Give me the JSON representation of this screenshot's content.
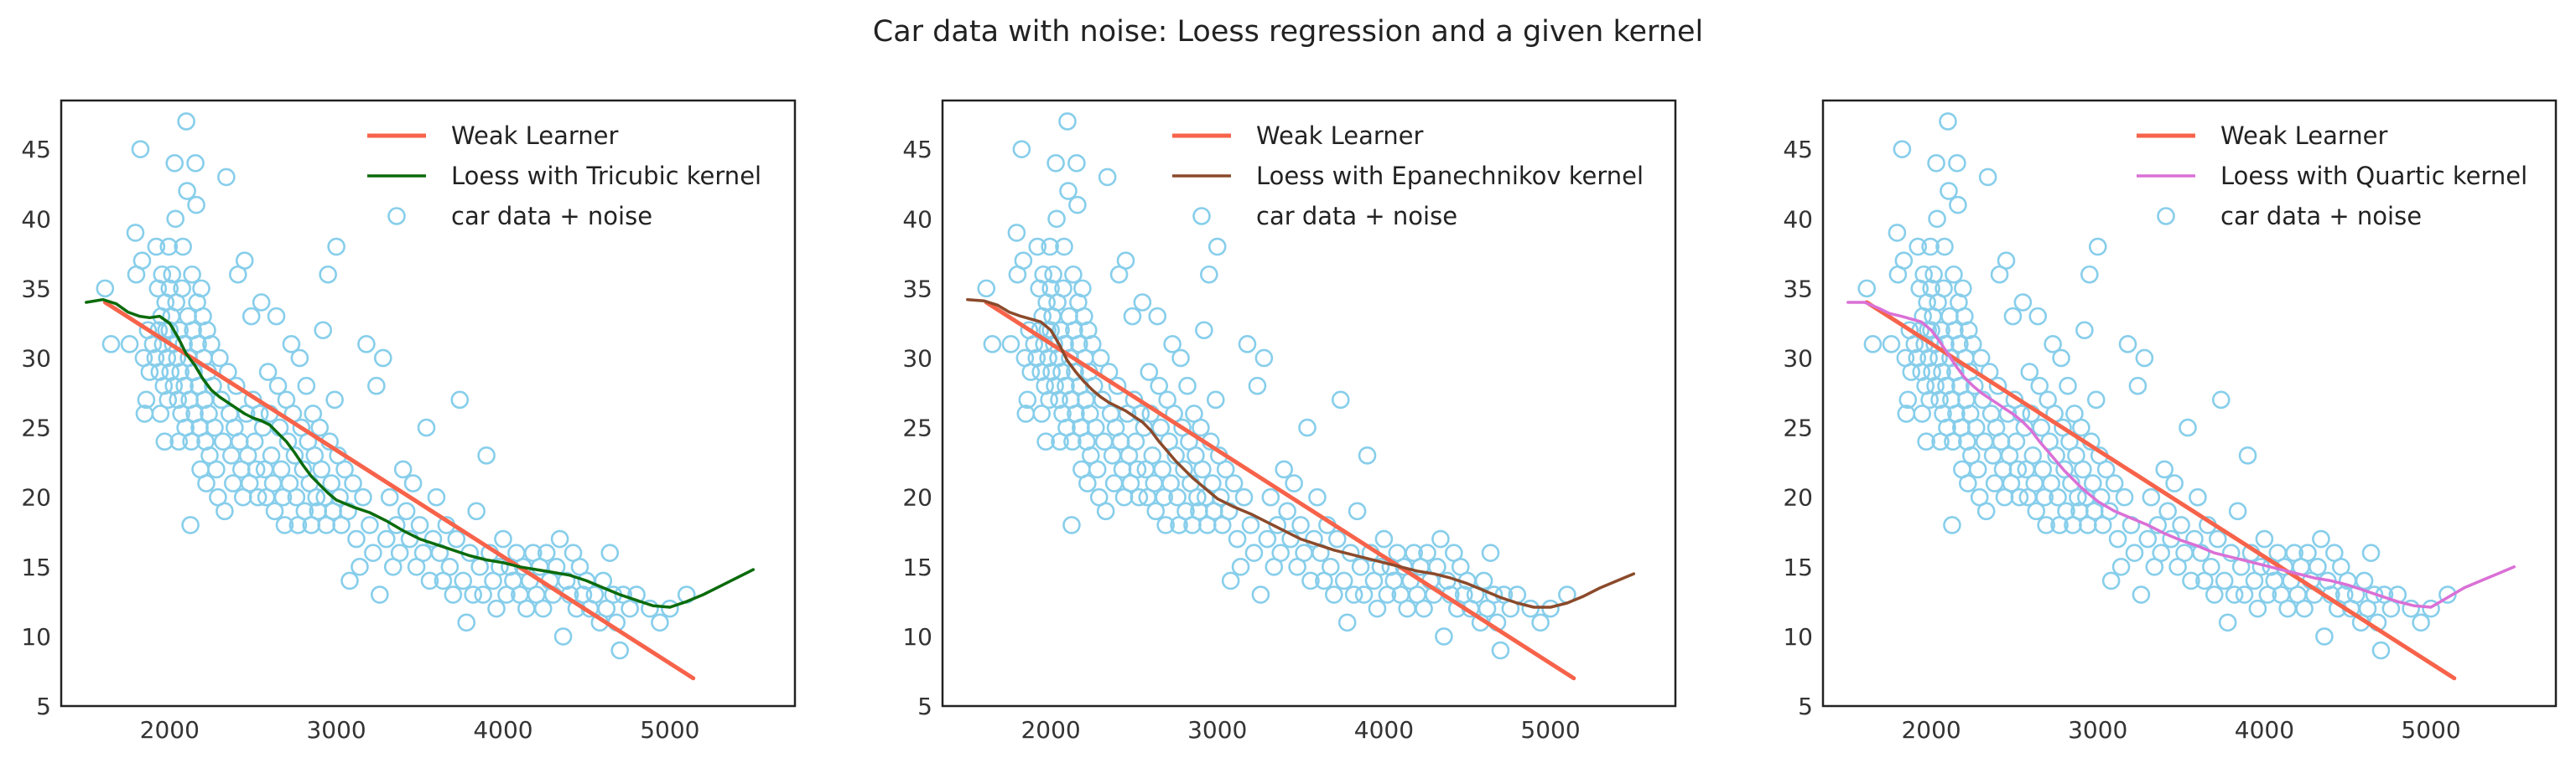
{
  "figure": {
    "title": "Car data with noise: Loess regression and a given kernel"
  },
  "colors": {
    "weak_learner": "#f7634a",
    "scatter": "#87ceeb",
    "tricubic": "#0b6b0b",
    "epanechnikov": "#8b4a2b",
    "quartic": "#da70d6"
  },
  "chart_data": [
    {
      "type": "line",
      "xlim": [
        1350,
        5750
      ],
      "ylim": [
        5,
        48.5
      ],
      "xticks": [
        2000,
        3000,
        4000,
        5000
      ],
      "yticks": [
        5,
        10,
        15,
        20,
        25,
        30,
        35,
        40,
        45
      ],
      "grid": false,
      "legend_placement": "top-right",
      "series": [
        {
          "name": "Weak Learner",
          "kind": "line",
          "color": "#f7634a",
          "width": 5,
          "x": [
            1613,
            5140
          ],
          "y": [
            34.0,
            7.0
          ]
        },
        {
          "name": "Loess with Tricubic kernel",
          "kind": "line",
          "color": "#0b6b0b",
          "width": 3.5,
          "x": [
            1500,
            1600,
            1680,
            1750,
            1820,
            1880,
            1940,
            2000,
            2050,
            2100,
            2150,
            2200,
            2250,
            2300,
            2350,
            2400,
            2450,
            2500,
            2550,
            2600,
            2650,
            2700,
            2750,
            2800,
            2850,
            2900,
            2950,
            3000,
            3100,
            3200,
            3300,
            3400,
            3500,
            3600,
            3700,
            3800,
            3900,
            4000,
            4100,
            4200,
            4300,
            4400,
            4500,
            4600,
            4700,
            4800,
            4900,
            5000,
            5100,
            5200,
            5300,
            5400,
            5500
          ],
          "y": [
            34.0,
            34.2,
            33.9,
            33.3,
            33.0,
            32.9,
            33.0,
            32.5,
            31.5,
            30.3,
            29.5,
            28.5,
            27.7,
            27.2,
            26.8,
            26.4,
            26.0,
            25.7,
            25.5,
            25.2,
            24.6,
            24.0,
            23.2,
            22.3,
            21.5,
            20.9,
            20.3,
            19.8,
            19.3,
            18.9,
            18.3,
            17.6,
            17.0,
            16.6,
            16.2,
            15.8,
            15.5,
            15.3,
            15.0,
            14.8,
            14.6,
            14.4,
            14.0,
            13.5,
            13.0,
            12.6,
            12.2,
            12.1,
            12.5,
            13.0,
            13.6,
            14.2,
            14.8
          ]
        },
        {
          "name": "car data + noise",
          "kind": "scatter",
          "color": "#87ceeb"
        }
      ]
    },
    {
      "type": "line",
      "xlim": [
        1350,
        5750
      ],
      "ylim": [
        5,
        48.5
      ],
      "xticks": [
        2000,
        3000,
        4000,
        5000
      ],
      "yticks": [
        5,
        10,
        15,
        20,
        25,
        30,
        35,
        40,
        45
      ],
      "grid": false,
      "legend_placement": "top-right",
      "series": [
        {
          "name": "Weak Learner",
          "kind": "line",
          "color": "#f7634a",
          "width": 5,
          "x": [
            1613,
            5140
          ],
          "y": [
            34.0,
            7.0
          ]
        },
        {
          "name": "Loess with Epanechnikov kernel",
          "kind": "line",
          "color": "#8b4a2b",
          "width": 3.5,
          "x": [
            1500,
            1600,
            1680,
            1750,
            1820,
            1880,
            1940,
            2000,
            2050,
            2100,
            2150,
            2200,
            2250,
            2300,
            2350,
            2400,
            2450,
            2500,
            2550,
            2600,
            2650,
            2700,
            2750,
            2800,
            2850,
            2900,
            2950,
            3000,
            3100,
            3200,
            3300,
            3400,
            3500,
            3600,
            3700,
            3800,
            3900,
            4000,
            4100,
            4200,
            4300,
            4400,
            4500,
            4600,
            4700,
            4800,
            4900,
            5000,
            5100,
            5200,
            5300,
            5400,
            5500
          ],
          "y": [
            34.2,
            34.1,
            33.8,
            33.3,
            33.0,
            32.8,
            32.6,
            32.0,
            31.0,
            29.8,
            29.0,
            28.3,
            27.7,
            27.2,
            26.8,
            26.5,
            26.2,
            25.8,
            25.4,
            24.8,
            24.0,
            23.3,
            22.6,
            22.0,
            21.4,
            20.9,
            20.4,
            19.9,
            19.3,
            18.8,
            18.2,
            17.6,
            17.0,
            16.6,
            16.2,
            15.9,
            15.6,
            15.3,
            15.0,
            14.7,
            14.5,
            14.2,
            13.8,
            13.3,
            12.8,
            12.4,
            12.1,
            12.1,
            12.4,
            12.9,
            13.5,
            14.0,
            14.5
          ]
        },
        {
          "name": "car data + noise",
          "kind": "scatter",
          "color": "#87ceeb"
        }
      ]
    },
    {
      "type": "line",
      "xlim": [
        1350,
        5750
      ],
      "ylim": [
        5,
        48.5
      ],
      "xticks": [
        2000,
        3000,
        4000,
        5000
      ],
      "yticks": [
        5,
        10,
        15,
        20,
        25,
        30,
        35,
        40,
        45
      ],
      "grid": false,
      "legend_placement": "top-right",
      "series": [
        {
          "name": "Weak Learner",
          "kind": "line",
          "color": "#f7634a",
          "width": 5,
          "x": [
            1613,
            5140
          ],
          "y": [
            34.0,
            7.0
          ]
        },
        {
          "name": "Loess with Quartic kernel",
          "kind": "line",
          "color": "#da70d6",
          "width": 3.5,
          "x": [
            1500,
            1600,
            1680,
            1750,
            1820,
            1880,
            1940,
            2000,
            2050,
            2100,
            2150,
            2200,
            2250,
            2300,
            2350,
            2400,
            2450,
            2500,
            2550,
            2600,
            2650,
            2700,
            2750,
            2800,
            2850,
            2900,
            2950,
            3000,
            3100,
            3200,
            3300,
            3400,
            3500,
            3600,
            3700,
            3800,
            3900,
            4000,
            4100,
            4200,
            4300,
            4400,
            4500,
            4600,
            4700,
            4800,
            4900,
            5000,
            5100,
            5200,
            5300,
            5400,
            5500
          ],
          "y": [
            34.0,
            34.0,
            33.6,
            33.2,
            33.0,
            32.8,
            32.6,
            32.0,
            31.2,
            30.3,
            29.4,
            28.6,
            28.0,
            27.5,
            27.1,
            26.7,
            26.3,
            25.9,
            25.4,
            24.8,
            24.0,
            23.3,
            22.6,
            21.9,
            21.3,
            20.7,
            20.2,
            19.7,
            19.0,
            18.5,
            18.0,
            17.4,
            16.9,
            16.5,
            16.0,
            15.7,
            15.4,
            15.1,
            14.8,
            14.5,
            14.2,
            14.0,
            13.7,
            13.3,
            12.9,
            12.5,
            12.2,
            12.1,
            12.8,
            13.5,
            14.0,
            14.5,
            15.0
          ]
        },
        {
          "name": "car data + noise",
          "kind": "scatter",
          "color": "#87ceeb"
        }
      ]
    }
  ],
  "scatter_points": [
    [
      1613,
      35
    ],
    [
      1649,
      31
    ],
    [
      1760,
      31
    ],
    [
      1795,
      39
    ],
    [
      1800,
      36
    ],
    [
      1825,
      45
    ],
    [
      1835,
      37
    ],
    [
      1845,
      30
    ],
    [
      1850,
      26
    ],
    [
      1860,
      27
    ],
    [
      1870,
      32
    ],
    [
      1880,
      29
    ],
    [
      1900,
      31
    ],
    [
      1915,
      30
    ],
    [
      1920,
      38
    ],
    [
      1930,
      35
    ],
    [
      1935,
      32
    ],
    [
      1940,
      29
    ],
    [
      1945,
      26
    ],
    [
      1950,
      33
    ],
    [
      1955,
      36
    ],
    [
      1960,
      31
    ],
    [
      1965,
      28
    ],
    [
      1970,
      24
    ],
    [
      1975,
      34
    ],
    [
      1980,
      32
    ],
    [
      1985,
      30
    ],
    [
      1990,
      27
    ],
    [
      1995,
      38
    ],
    [
      2000,
      35
    ],
    [
      2000,
      32
    ],
    [
      2005,
      29
    ],
    [
      2010,
      33
    ],
    [
      2015,
      36
    ],
    [
      2020,
      31
    ],
    [
      2025,
      28
    ],
    [
      2030,
      44
    ],
    [
      2035,
      40
    ],
    [
      2040,
      34
    ],
    [
      2045,
      30
    ],
    [
      2050,
      27
    ],
    [
      2055,
      24
    ],
    [
      2060,
      32
    ],
    [
      2065,
      29
    ],
    [
      2070,
      26
    ],
    [
      2075,
      35
    ],
    [
      2080,
      38
    ],
    [
      2085,
      31
    ],
    [
      2090,
      28
    ],
    [
      2095,
      25
    ],
    [
      2100,
      47
    ],
    [
      2105,
      42
    ],
    [
      2110,
      33
    ],
    [
      2115,
      30
    ],
    [
      2120,
      27
    ],
    [
      2125,
      18
    ],
    [
      2130,
      24
    ],
    [
      2135,
      36
    ],
    [
      2140,
      32
    ],
    [
      2145,
      29
    ],
    [
      2150,
      26
    ],
    [
      2155,
      44
    ],
    [
      2160,
      41
    ],
    [
      2165,
      34
    ],
    [
      2170,
      31
    ],
    [
      2175,
      28
    ],
    [
      2180,
      25
    ],
    [
      2185,
      22
    ],
    [
      2190,
      35
    ],
    [
      2200,
      33
    ],
    [
      2205,
      30
    ],
    [
      2210,
      27
    ],
    [
      2215,
      24
    ],
    [
      2220,
      21
    ],
    [
      2225,
      32
    ],
    [
      2230,
      29
    ],
    [
      2235,
      26
    ],
    [
      2240,
      23
    ],
    [
      2250,
      31
    ],
    [
      2260,
      28
    ],
    [
      2270,
      25
    ],
    [
      2280,
      22
    ],
    [
      2290,
      20
    ],
    [
      2300,
      30
    ],
    [
      2310,
      27
    ],
    [
      2320,
      24
    ],
    [
      2330,
      19
    ],
    [
      2340,
      43
    ],
    [
      2350,
      29
    ],
    [
      2360,
      26
    ],
    [
      2370,
      23
    ],
    [
      2380,
      21
    ],
    [
      2390,
      25
    ],
    [
      2400,
      28
    ],
    [
      2410,
      36
    ],
    [
      2420,
      24
    ],
    [
      2430,
      22
    ],
    [
      2440,
      20
    ],
    [
      2450,
      37
    ],
    [
      2460,
      26
    ],
    [
      2470,
      23
    ],
    [
      2480,
      21
    ],
    [
      2490,
      33
    ],
    [
      2500,
      27
    ],
    [
      2510,
      24
    ],
    [
      2520,
      22
    ],
    [
      2530,
      20
    ],
    [
      2540,
      26
    ],
    [
      2550,
      34
    ],
    [
      2560,
      25
    ],
    [
      2570,
      22
    ],
    [
      2580,
      20
    ],
    [
      2590,
      29
    ],
    [
      2600,
      26
    ],
    [
      2610,
      23
    ],
    [
      2620,
      21
    ],
    [
      2630,
      19
    ],
    [
      2640,
      33
    ],
    [
      2650,
      28
    ],
    [
      2660,
      25
    ],
    [
      2670,
      22
    ],
    [
      2680,
      20
    ],
    [
      2690,
      18
    ],
    [
      2700,
      27
    ],
    [
      2710,
      24
    ],
    [
      2720,
      21
    ],
    [
      2730,
      31
    ],
    [
      2740,
      26
    ],
    [
      2750,
      23
    ],
    [
      2760,
      20
    ],
    [
      2770,
      18
    ],
    [
      2780,
      30
    ],
    [
      2790,
      25
    ],
    [
      2800,
      22
    ],
    [
      2810,
      19
    ],
    [
      2820,
      28
    ],
    [
      2830,
      24
    ],
    [
      2840,
      21
    ],
    [
      2850,
      18
    ],
    [
      2860,
      26
    ],
    [
      2870,
      23
    ],
    [
      2880,
      20
    ],
    [
      2890,
      19
    ],
    [
      2900,
      25
    ],
    [
      2910,
      22
    ],
    [
      2920,
      32
    ],
    [
      2930,
      20
    ],
    [
      2940,
      18
    ],
    [
      2950,
      36
    ],
    [
      2960,
      24
    ],
    [
      2970,
      21
    ],
    [
      2980,
      19
    ],
    [
      2990,
      27
    ],
    [
      3000,
      38
    ],
    [
      3010,
      23
    ],
    [
      3020,
      20
    ],
    [
      3030,
      18
    ],
    [
      3050,
      22
    ],
    [
      3070,
      19
    ],
    [
      3080,
      14
    ],
    [
      3100,
      21
    ],
    [
      3120,
      17
    ],
    [
      3140,
      15
    ],
    [
      3160,
      20
    ],
    [
      3180,
      31
    ],
    [
      3200,
      18
    ],
    [
      3220,
      16
    ],
    [
      3240,
      28
    ],
    [
      3260,
      13
    ],
    [
      3280,
      30
    ],
    [
      3300,
      17
    ],
    [
      3320,
      20
    ],
    [
      3340,
      15
    ],
    [
      3360,
      18
    ],
    [
      3380,
      16
    ],
    [
      3400,
      22
    ],
    [
      3420,
      19
    ],
    [
      3440,
      17
    ],
    [
      3460,
      21
    ],
    [
      3480,
      15
    ],
    [
      3500,
      18
    ],
    [
      3520,
      16
    ],
    [
      3540,
      25
    ],
    [
      3560,
      14
    ],
    [
      3580,
      17
    ],
    [
      3600,
      20
    ],
    [
      3620,
      16
    ],
    [
      3640,
      14
    ],
    [
      3660,
      18
    ],
    [
      3680,
      15
    ],
    [
      3700,
      13
    ],
    [
      3720,
      17
    ],
    [
      3740,
      27
    ],
    [
      3760,
      14
    ],
    [
      3780,
      11
    ],
    [
      3800,
      16
    ],
    [
      3820,
      13
    ],
    [
      3840,
      19
    ],
    [
      3860,
      15
    ],
    [
      3880,
      13
    ],
    [
      3900,
      23
    ],
    [
      3920,
      16
    ],
    [
      3940,
      14
    ],
    [
      3960,
      12
    ],
    [
      3980,
      15
    ],
    [
      4000,
      17
    ],
    [
      4020,
      13
    ],
    [
      4040,
      15
    ],
    [
      4060,
      14
    ],
    [
      4080,
      16
    ],
    [
      4100,
      13
    ],
    [
      4120,
      15
    ],
    [
      4140,
      12
    ],
    [
      4160,
      14
    ],
    [
      4180,
      16
    ],
    [
      4200,
      13
    ],
    [
      4220,
      15
    ],
    [
      4240,
      12
    ],
    [
      4260,
      16
    ],
    [
      4280,
      14
    ],
    [
      4300,
      13
    ],
    [
      4320,
      15
    ],
    [
      4340,
      17
    ],
    [
      4360,
      10
    ],
    [
      4380,
      14
    ],
    [
      4400,
      13
    ],
    [
      4420,
      16
    ],
    [
      4440,
      12
    ],
    [
      4460,
      15
    ],
    [
      4480,
      13
    ],
    [
      4500,
      14
    ],
    [
      4520,
      12
    ],
    [
      4550,
      13
    ],
    [
      4580,
      11
    ],
    [
      4600,
      14
    ],
    [
      4620,
      12
    ],
    [
      4640,
      16
    ],
    [
      4660,
      13
    ],
    [
      4680,
      11
    ],
    [
      4700,
      9
    ],
    [
      4720,
      13
    ],
    [
      4760,
      12
    ],
    [
      4800,
      13
    ],
    [
      4880,
      12
    ],
    [
      4940,
      11
    ],
    [
      5000,
      12
    ],
    [
      5100,
      13
    ]
  ]
}
